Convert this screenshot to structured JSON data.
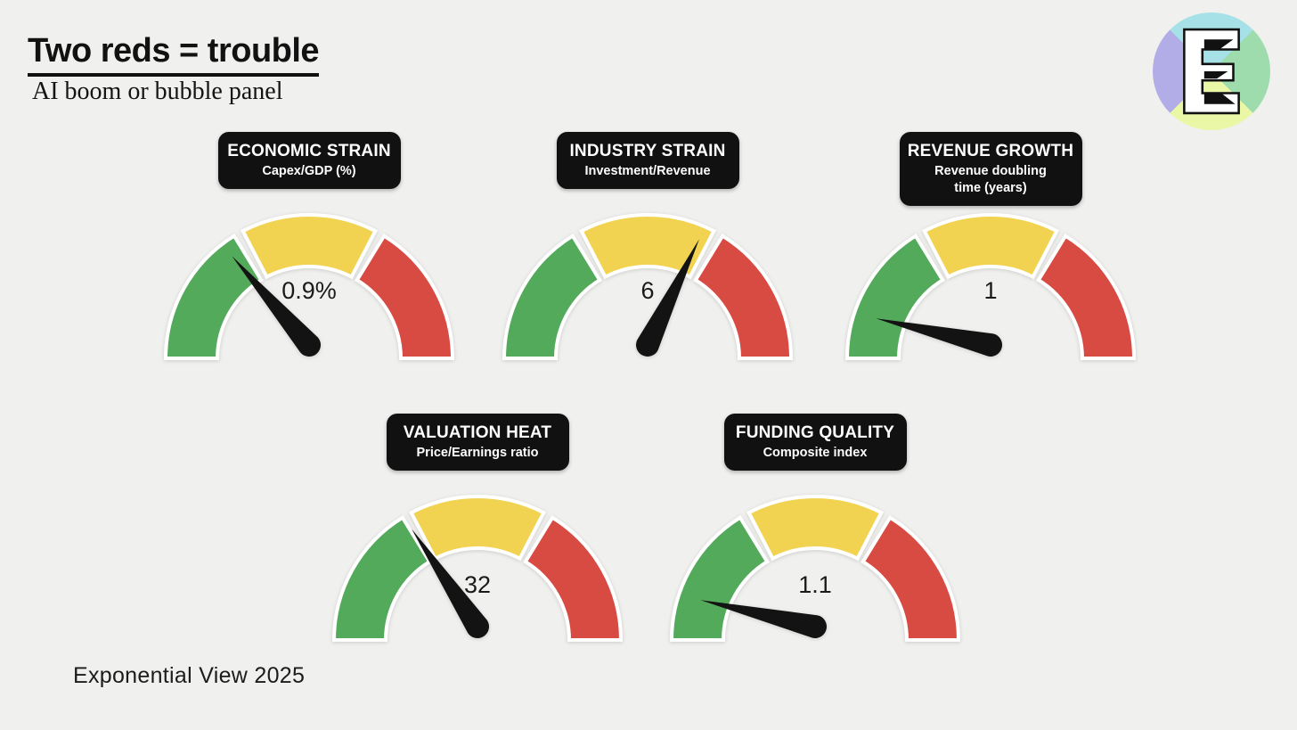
{
  "header": {
    "title": "Two reds = trouble",
    "subtitle": "AI boom or bubble panel"
  },
  "footer": {
    "credit": "Exponential View 2025"
  },
  "logo": {
    "letter": "E",
    "quadrant_colors": {
      "top": "#a5e1e7",
      "right": "#9edcae",
      "bottom": "#eaf7a6",
      "left": "#b2ace7"
    }
  },
  "chart_data": {
    "type": "gauge",
    "layout": {
      "dial_sweep_degrees": 180,
      "zone_order": [
        "green",
        "yellow",
        "red"
      ],
      "zone_arc_degrees": 60,
      "zone_angles": {
        "green": [
          180,
          121.5
        ],
        "yellow": [
          117.5,
          62.5
        ],
        "red": [
          58.5,
          0
        ]
      }
    },
    "colors": {
      "green": "#53aa5b",
      "yellow": "#f1d351",
      "red": "#d84b43",
      "needle": "#131313",
      "outline": "#ffffff",
      "label_box": "#111111"
    },
    "gauges": [
      {
        "title": "ECONOMIC STRAIN",
        "subtitle": "Capex/GDP (%)",
        "value": 0.9,
        "value_label": "0.9%",
        "needle_angle_deg": 131,
        "needle_zone": "green"
      },
      {
        "title": "INDUSTRY STRAIN",
        "subtitle": "Investment/Revenue",
        "value": 6,
        "value_label": "6",
        "needle_angle_deg": 64,
        "needle_zone": "yellow"
      },
      {
        "title": "REVENUE GROWTH",
        "subtitle": "Revenue doubling time (years)",
        "value": 1,
        "value_label": "1",
        "needle_angle_deg": 167,
        "needle_zone": "green"
      },
      {
        "title": "VALUATION HEAT",
        "subtitle": "Price/Earnings ratio",
        "value": 32,
        "value_label": "32",
        "needle_angle_deg": 124,
        "needle_zone": "green"
      },
      {
        "title": "FUNDING QUALITY",
        "subtitle": "Composite index",
        "value": 1.1,
        "value_label": "1.1",
        "needle_angle_deg": 167,
        "needle_zone": "green"
      }
    ]
  }
}
